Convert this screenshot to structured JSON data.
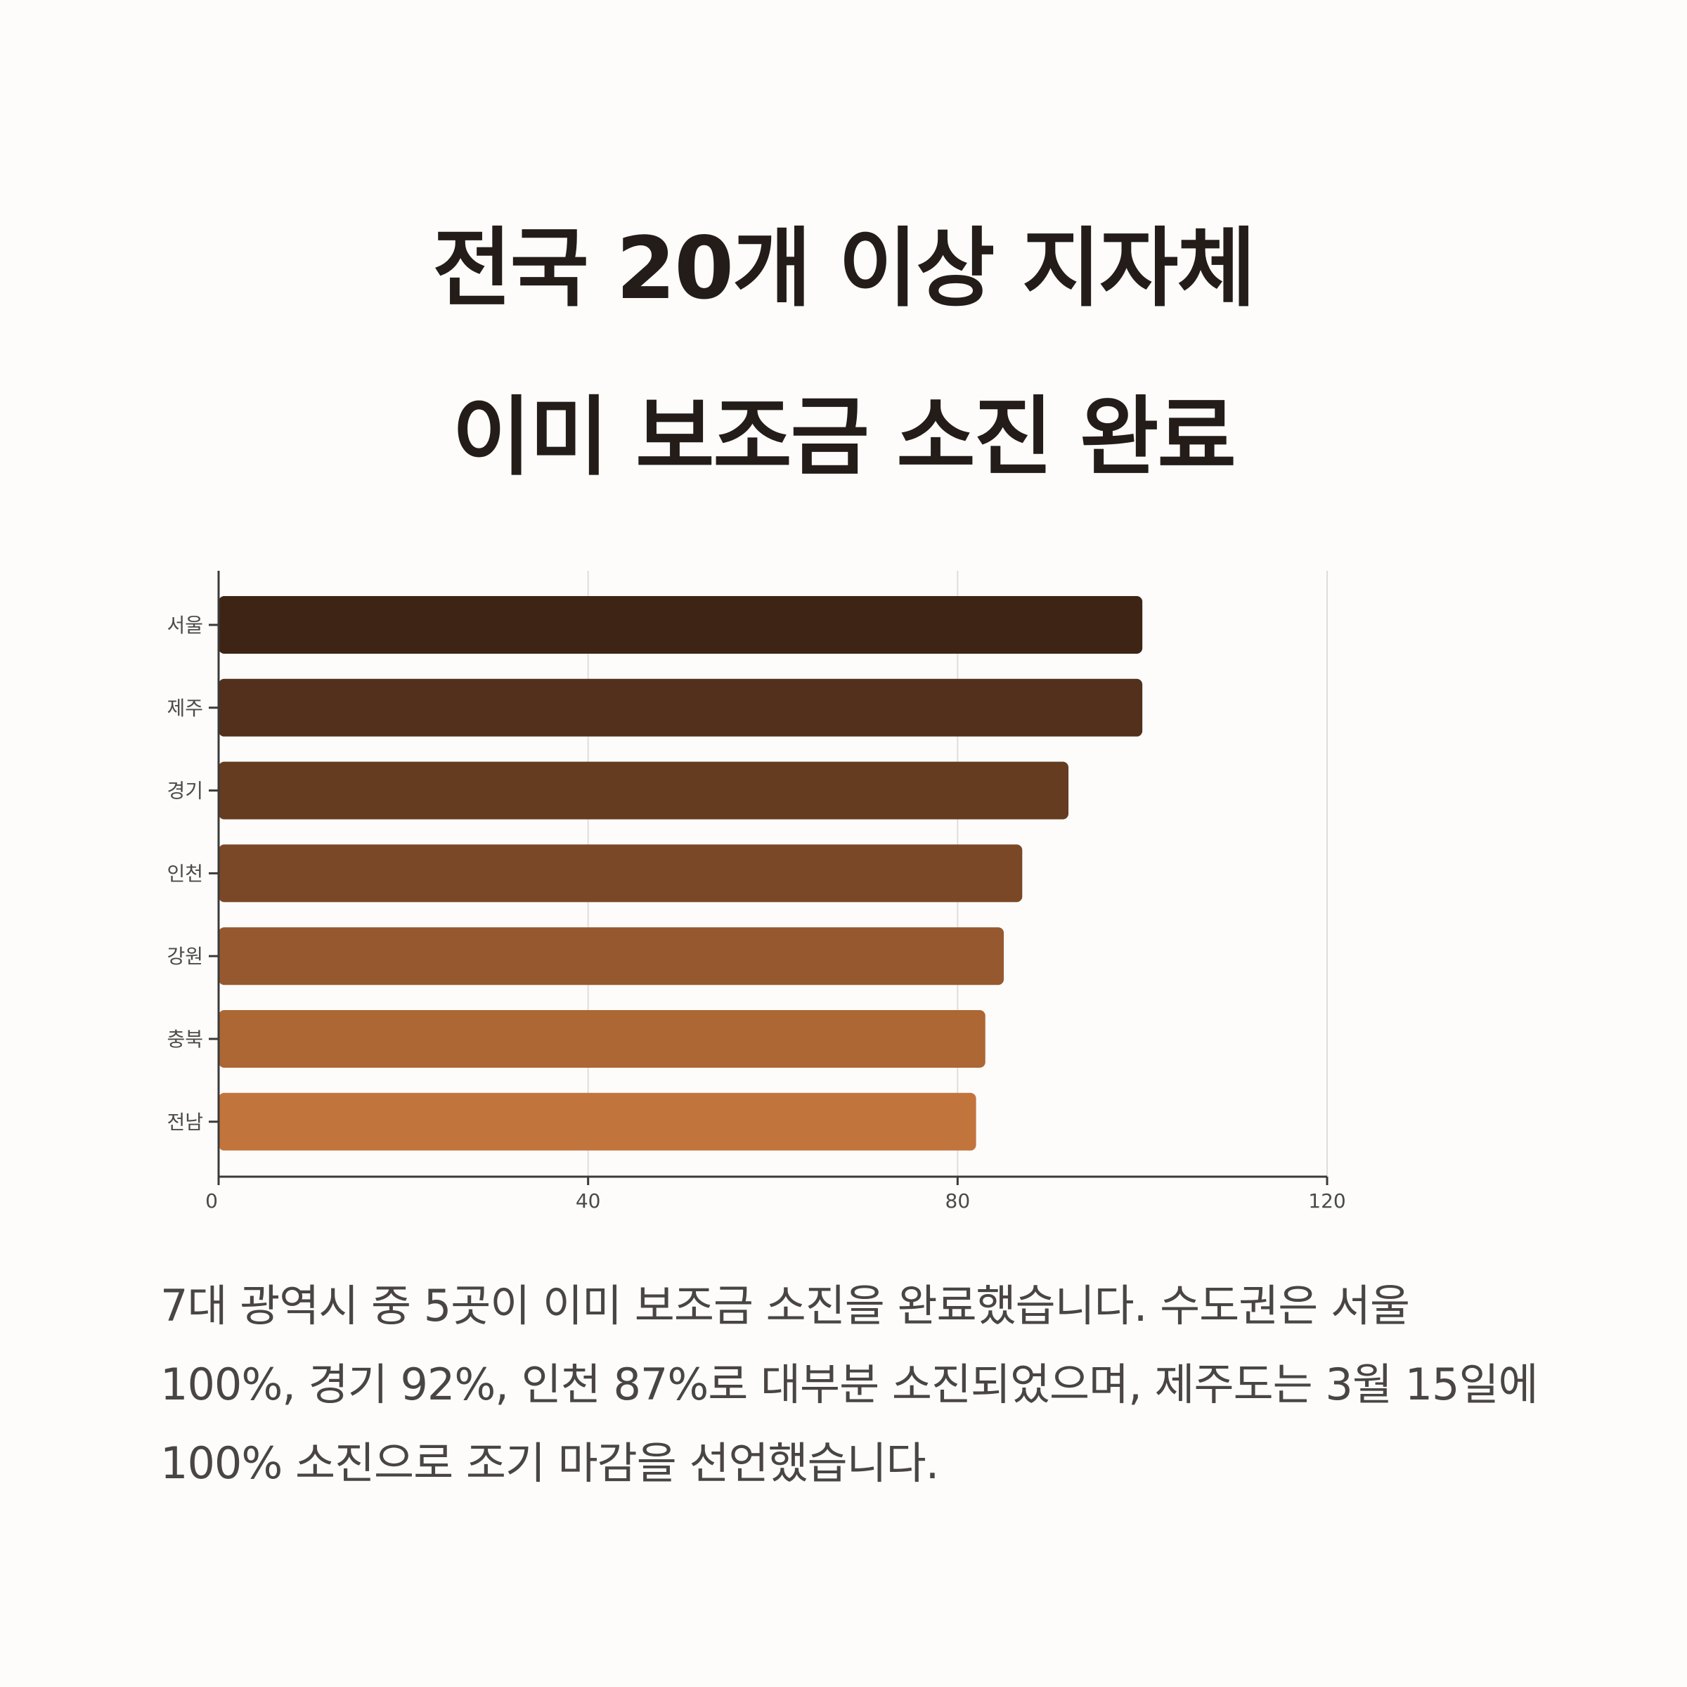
{
  "title": {
    "line1": "전국 20개 이상 지자체",
    "line2": "이미 보조금 소진 완료"
  },
  "description": "7대 광역시 중 5곳이 이미 보조금 소진을 완료했습니다. 수도권은 서울 100%, 경기 92%, 인천 87%로 대부분 소진되었으며, 제주도는 3월 15일에 100% 소진으로 조기 마감을 선언했습니다.",
  "chart_data": {
    "type": "bar",
    "orientation": "horizontal",
    "categories": [
      "서울",
      "제주",
      "경기",
      "인천",
      "강원",
      "충북",
      "전남"
    ],
    "values": [
      100,
      100,
      92,
      87,
      85,
      83,
      82
    ],
    "colors": [
      "#3d2414",
      "#52301b",
      "#663c20",
      "#7b4827",
      "#96592f",
      "#ac6734",
      "#c2743d"
    ],
    "xlim": [
      0,
      120
    ],
    "xticks": [
      0,
      40,
      80,
      120
    ],
    "grid": true
  },
  "colors": {
    "background": "#fdfcfb",
    "title": "#231c19",
    "description": "#4a4542",
    "axis": "#3a3a3a",
    "grid": "#dddddd",
    "tick_label": "#4a4a4a"
  }
}
